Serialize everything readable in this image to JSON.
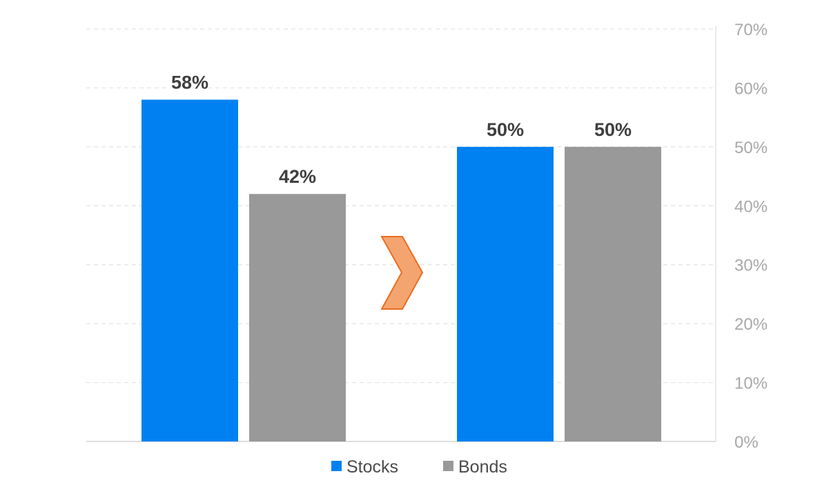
{
  "chart_data": {
    "type": "bar",
    "categories": [
      "",
      ""
    ],
    "series": [
      {
        "name": "Stocks",
        "values": [
          58,
          50
        ],
        "labels": [
          "58%",
          "50%"
        ],
        "color": "#0081f1"
      },
      {
        "name": "Bonds",
        "values": [
          42,
          50
        ],
        "labels": [
          "42%",
          "50%"
        ],
        "color": "#999999"
      }
    ],
    "title": "",
    "xlabel": "",
    "ylabel": "",
    "ylim": [
      0,
      70
    ],
    "yticks": [
      0,
      10,
      20,
      30,
      40,
      50,
      60,
      70
    ],
    "ytick_labels": [
      "0%",
      "10%",
      "20%",
      "30%",
      "40%",
      "50%",
      "60%",
      "70%"
    ],
    "y_axis_side": "right",
    "grid": true,
    "grid_style": "dashed",
    "legend": {
      "position": "bottom",
      "entries": [
        "Stocks",
        "Bonds"
      ]
    },
    "annotation": {
      "type": "chevron-arrow",
      "direction": "right",
      "color": "#f4a46f",
      "stroke": "#ea6d20"
    }
  }
}
